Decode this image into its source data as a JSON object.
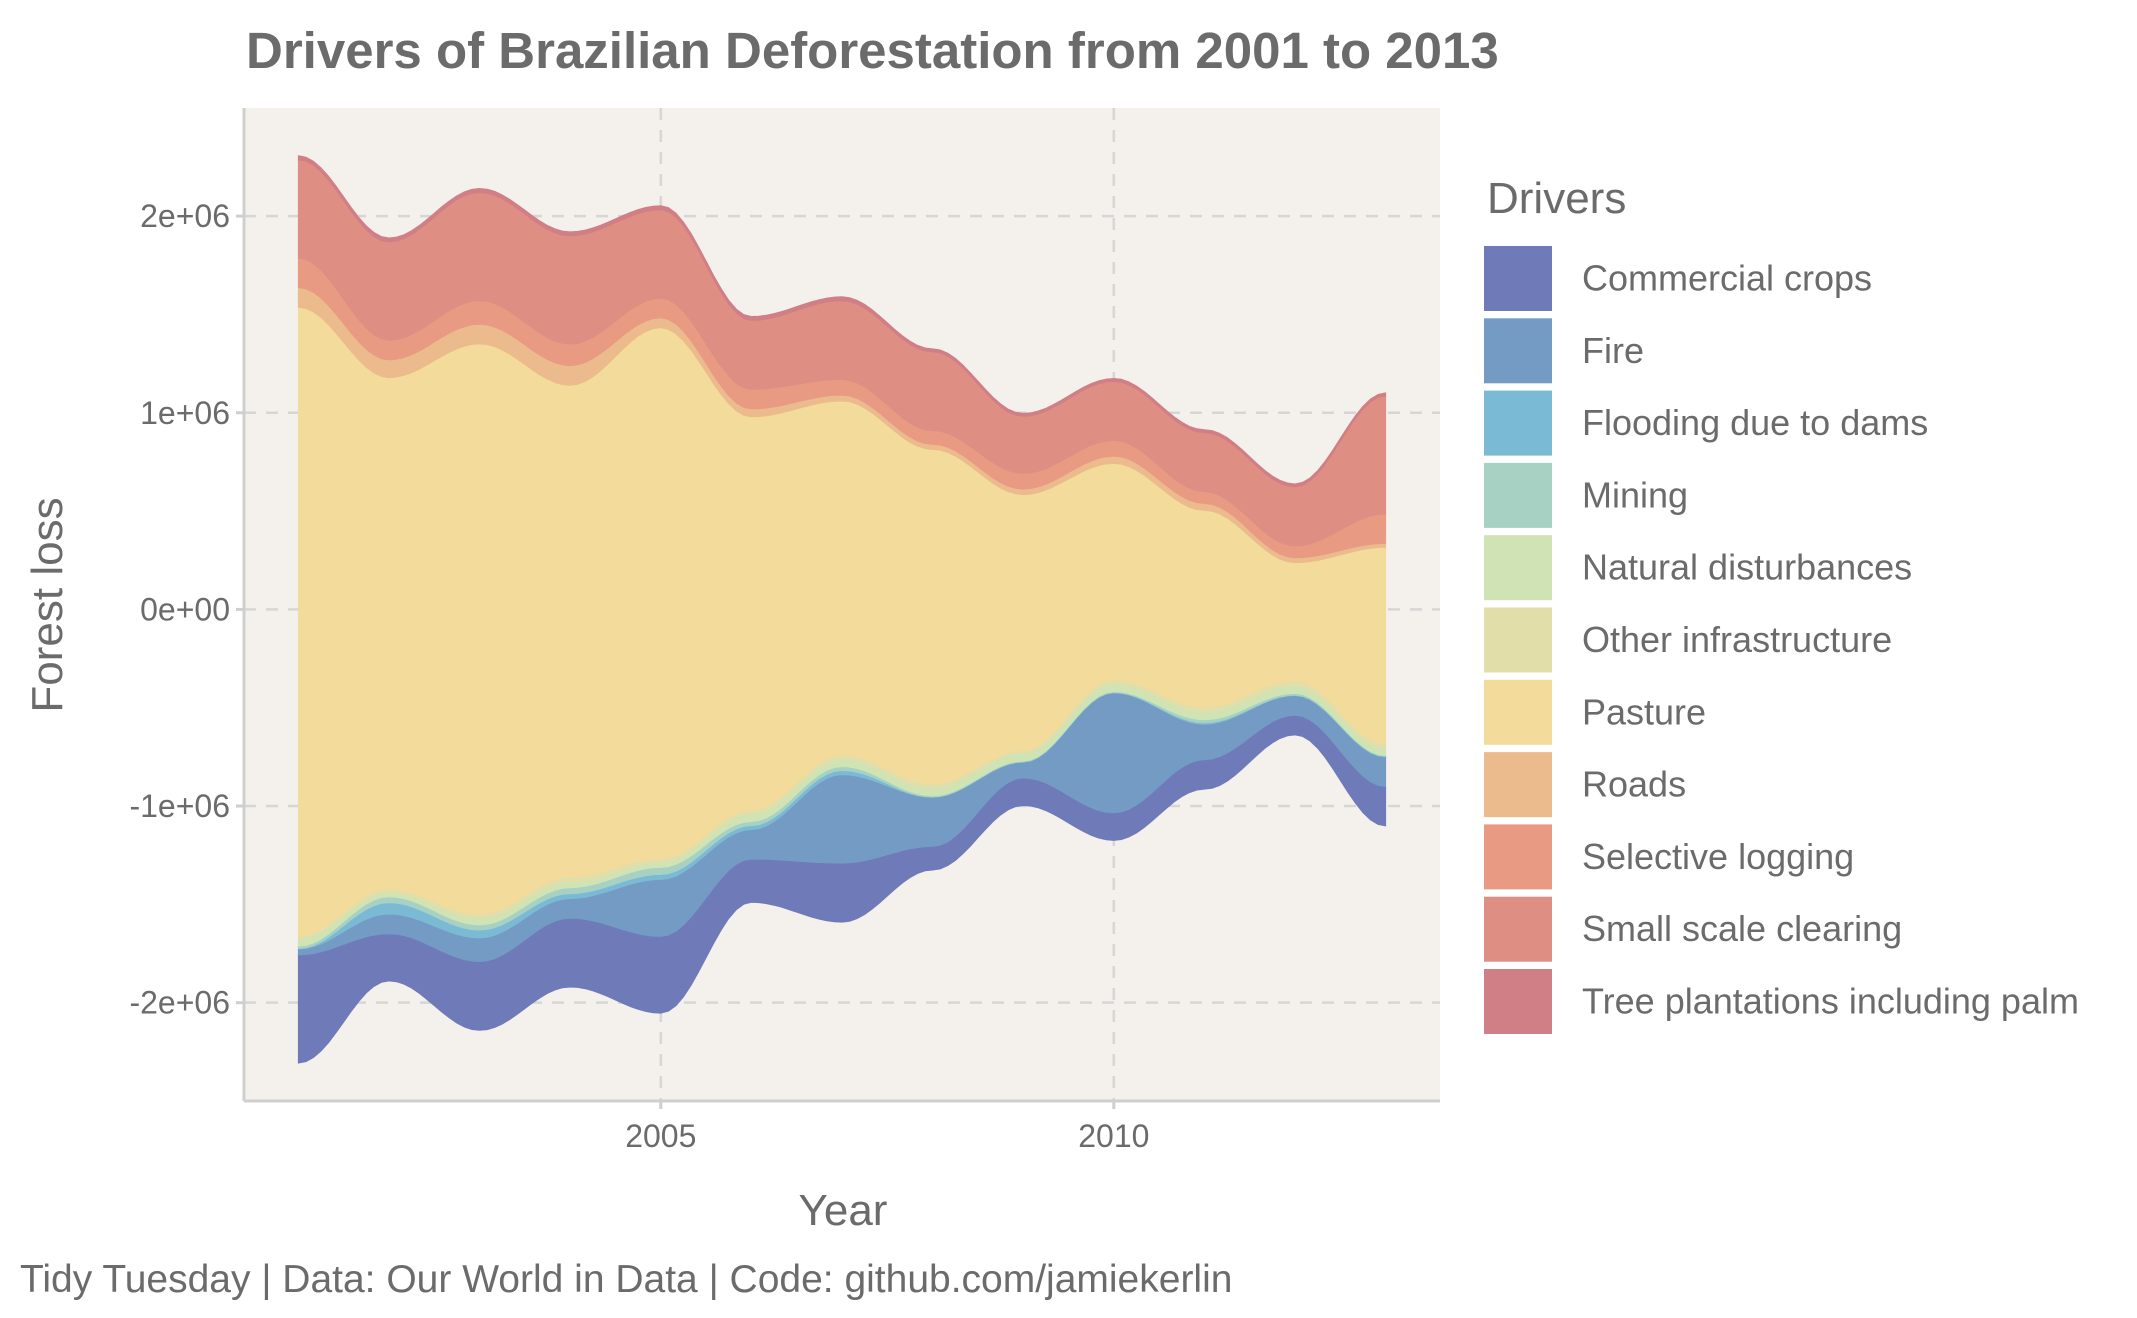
{
  "chart_data": {
    "type": "area",
    "subtype": "streamgraph",
    "title": "Drivers of Brazilian Deforestation from 2001 to 2013",
    "xlabel": "Year",
    "ylabel": "Forest loss",
    "caption": "Tidy Tuesday | Data: Our World in Data | Code: github.com/jamiekerlin",
    "legend_title": "Drivers",
    "legend_position": "right",
    "grid": true,
    "background_color": "#f4f0eb",
    "xlim": [
      2000.4,
      2013.6
    ],
    "ylim": [
      -2500000,
      2550000
    ],
    "x_ticks": [
      2005,
      2010
    ],
    "x_tick_labels": [
      "2005",
      "2010"
    ],
    "y_ticks": [
      2000000,
      1000000,
      0,
      -1000000,
      -2000000
    ],
    "y_tick_labels": [
      "2e+06",
      "1e+06",
      "0e+00",
      "-1e+06",
      "-2e+06"
    ],
    "x": [
      2001,
      2002,
      2003,
      2004,
      2005,
      2006,
      2007,
      2008,
      2009,
      2010,
      2011,
      2012,
      2013
    ],
    "series": [
      {
        "name": "Commercial crops",
        "color": "#6e7bb8",
        "values": [
          550000,
          240000,
          350000,
          350000,
          390000,
          220000,
          300000,
          120000,
          140000,
          140000,
          150000,
          100000,
          200000
        ]
      },
      {
        "name": "Fire",
        "color": "#749bc4",
        "values": [
          30000,
          100000,
          120000,
          100000,
          290000,
          150000,
          450000,
          250000,
          80000,
          610000,
          180000,
          100000,
          150000
        ]
      },
      {
        "name": "Flooding due to dams",
        "color": "#7bbad4",
        "values": [
          2000,
          58000,
          40000,
          25000,
          25000,
          20000,
          21000,
          1000,
          2000,
          2000,
          7000,
          2000,
          5000
        ]
      },
      {
        "name": "Mining",
        "color": "#a7d1c3",
        "values": [
          12000,
          30000,
          26000,
          30000,
          36000,
          21000,
          20000,
          6000,
          4000,
          5000,
          16000,
          9000,
          2000
        ]
      },
      {
        "name": "Natural disturbances",
        "color": "#cfe3b4",
        "values": [
          40000,
          20000,
          35000,
          30000,
          25000,
          38000,
          37000,
          40000,
          40000,
          40000,
          40000,
          40000,
          40000
        ]
      },
      {
        "name": "Other infrastructure",
        "color": "#e2dea9",
        "values": [
          10000,
          20000,
          20000,
          25000,
          20000,
          20000,
          22000,
          22000,
          15000,
          20000,
          25000,
          25000,
          20000
        ]
      },
      {
        "name": "Pasture",
        "color": "#f3db9b",
        "values": [
          3200000,
          2600000,
          2900000,
          2500000,
          2700000,
          2000000,
          1800000,
          1700000,
          1300000,
          1100000,
          1000000,
          600000,
          1000000
        ]
      },
      {
        "name": "Roads",
        "color": "#ecbb8d",
        "values": [
          100000,
          90000,
          100000,
          100000,
          50000,
          40000,
          30000,
          26000,
          28000,
          37000,
          35000,
          25000,
          20000
        ]
      },
      {
        "name": "Selective logging",
        "color": "#e89a82",
        "values": [
          150000,
          100000,
          120000,
          110000,
          100000,
          100000,
          80000,
          70000,
          80000,
          80000,
          60000,
          60000,
          150000
        ]
      },
      {
        "name": "Small scale clearing",
        "color": "#de8e83",
        "values": [
          500000,
          500000,
          550000,
          550000,
          450000,
          350000,
          400000,
          400000,
          290000,
          300000,
          300000,
          300000,
          600000
        ]
      },
      {
        "name": "Tree plantations including palm",
        "color": "#d17f86",
        "values": [
          20000,
          20000,
          20000,
          20000,
          20000,
          20000,
          20000,
          15000,
          15000,
          15000,
          15000,
          15000,
          15000
        ]
      }
    ]
  }
}
